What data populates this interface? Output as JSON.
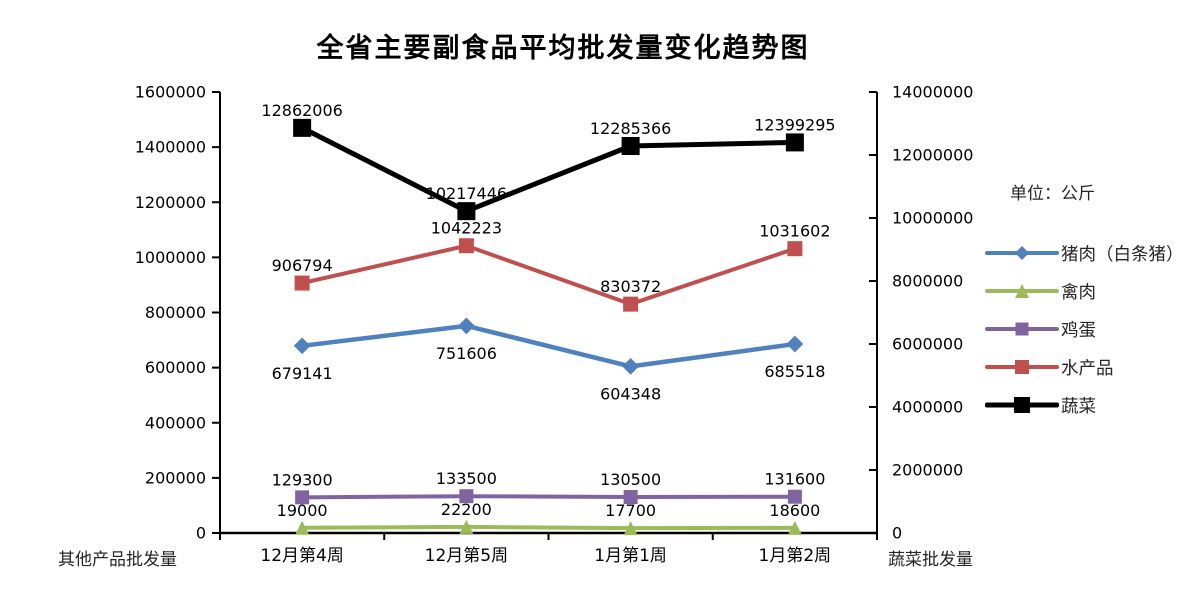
{
  "title": "全省主要副食品平均批发量变化趋势图",
  "chart_data": {
    "type": "line",
    "title": "全省主要副食品平均批发量变化趋势图",
    "categories": [
      "12月第4周",
      "12月第5周",
      "1月第1周",
      "1月第2周"
    ],
    "series": [
      {
        "name": "猪肉（白条猪）",
        "color": "#4F81BD",
        "marker": "diamond",
        "axis": "left",
        "label_position": "below",
        "values": [
          679141,
          751606,
          604348,
          685518
        ]
      },
      {
        "name": "禽肉",
        "color": "#9BBB59",
        "marker": "triangle",
        "axis": "left",
        "label_position": "above",
        "values": [
          19000,
          22200,
          17700,
          18600
        ]
      },
      {
        "name": "鸡蛋",
        "color": "#8064A2",
        "marker": "square",
        "axis": "left",
        "label_position": "above",
        "values": [
          129300,
          133500,
          130500,
          131600
        ]
      },
      {
        "name": "水产品",
        "color": "#C0504D",
        "marker": "square",
        "axis": "left",
        "label_position": "above",
        "values": [
          906794,
          1042223,
          830372,
          1031602
        ]
      },
      {
        "name": "蔬菜",
        "color": "#000000",
        "marker": "square",
        "axis": "right",
        "label_position": "above",
        "values": [
          12862006,
          10217446,
          12285366,
          12399295
        ]
      }
    ],
    "left_axis": {
      "title": "其他产品批发量",
      "min": 0,
      "max": 1600000,
      "step": 200000,
      "ylim": [
        0,
        1600000
      ]
    },
    "right_axis": {
      "title": "蔬菜批发量",
      "min": 0,
      "max": 14000000,
      "step": 2000000,
      "ylim": [
        0,
        14000000
      ]
    },
    "legend": {
      "unit": "单位：公斤",
      "position": "right"
    },
    "grid": false,
    "xlabel": "",
    "ylabel": ""
  }
}
